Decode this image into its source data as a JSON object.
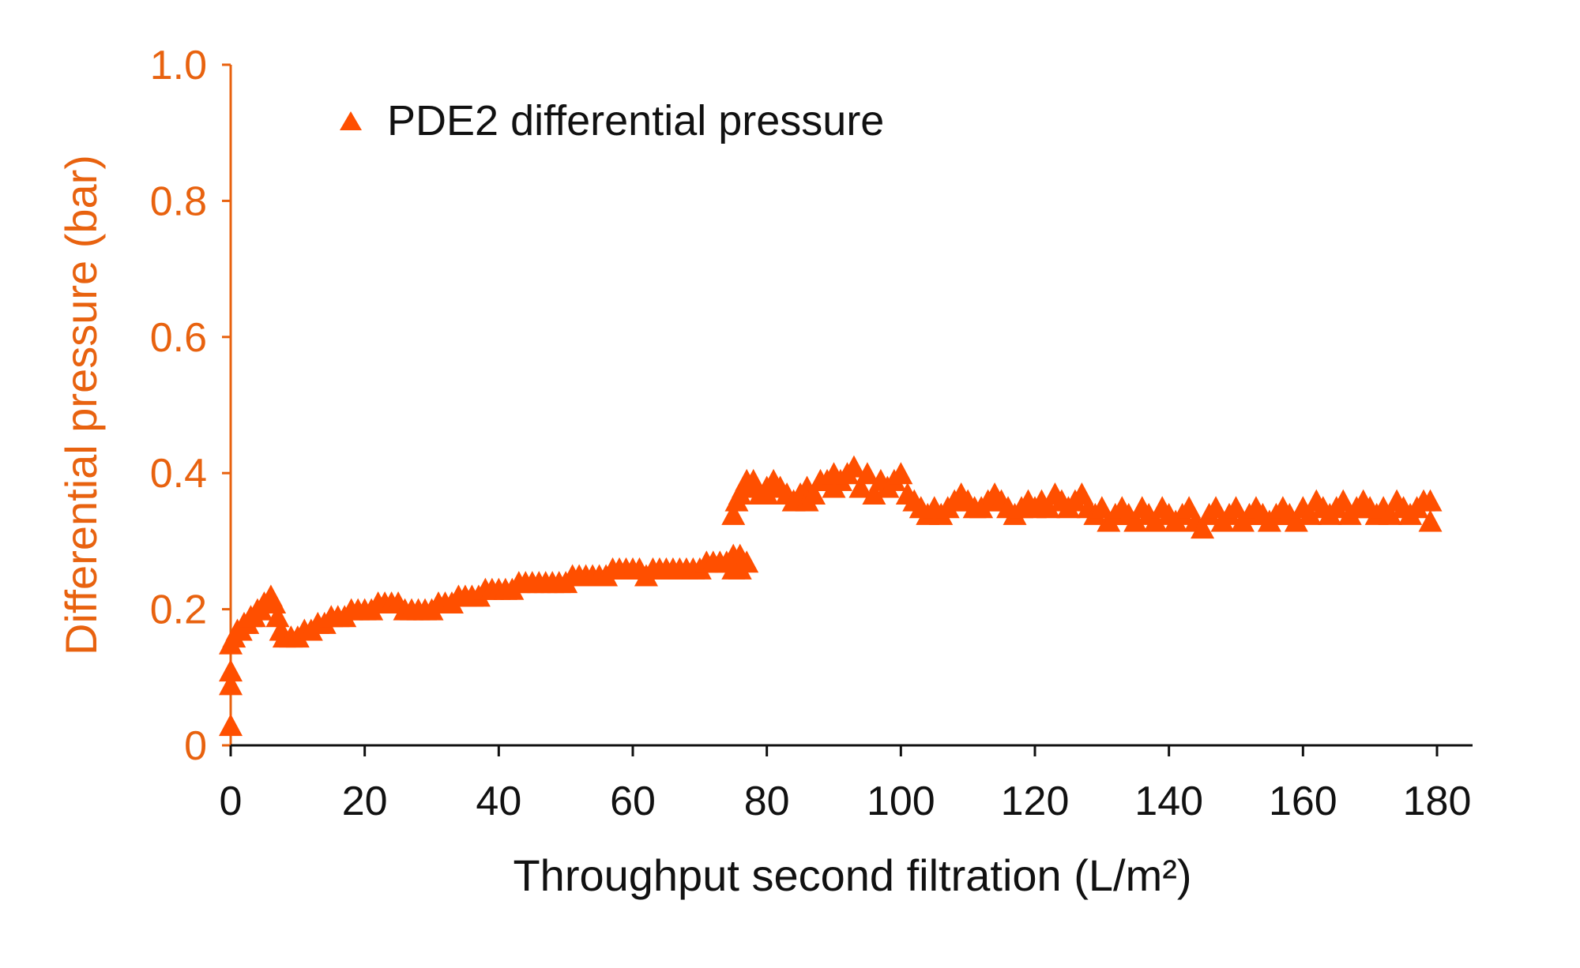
{
  "chart_data": {
    "type": "scatter",
    "title": "",
    "xlabel": "Throughput second filtration (L/m²)",
    "ylabel": "Differential pressure (bar)",
    "xlim": [
      0,
      180
    ],
    "ylim": [
      0,
      1.0
    ],
    "x_ticks": [
      "0",
      "20",
      "40",
      "60",
      "80",
      "100",
      "120",
      "140",
      "160",
      "180"
    ],
    "y_ticks": [
      "0",
      "0.2",
      "0.4",
      "0.6",
      "0.8",
      "1.0"
    ],
    "grid": false,
    "legend_position": "top-left",
    "marker": "triangle",
    "colors": {
      "series": "#FF4F00",
      "y_axis": "#E8620F",
      "x_axis": "#111111"
    },
    "series": [
      {
        "name": "PDE2 differential pressure",
        "points": [
          [
            0,
            0.03
          ],
          [
            0,
            0.09
          ],
          [
            0,
            0.11
          ],
          [
            0,
            0.15
          ],
          [
            0.5,
            0.16
          ],
          [
            1,
            0.17
          ],
          [
            1.5,
            0.17
          ],
          [
            2,
            0.18
          ],
          [
            2.5,
            0.18
          ],
          [
            3,
            0.19
          ],
          [
            3.5,
            0.19
          ],
          [
            4,
            0.2
          ],
          [
            4.5,
            0.2
          ],
          [
            5,
            0.21
          ],
          [
            5.5,
            0.21
          ],
          [
            6,
            0.22
          ],
          [
            6.5,
            0.21
          ],
          [
            7,
            0.19
          ],
          [
            7.5,
            0.17
          ],
          [
            8,
            0.16
          ],
          [
            9,
            0.16
          ],
          [
            10,
            0.16
          ],
          [
            11,
            0.17
          ],
          [
            12,
            0.17
          ],
          [
            13,
            0.18
          ],
          [
            14,
            0.18
          ],
          [
            15,
            0.19
          ],
          [
            16,
            0.19
          ],
          [
            17,
            0.19
          ],
          [
            18,
            0.2
          ],
          [
            19,
            0.2
          ],
          [
            20,
            0.2
          ],
          [
            21,
            0.2
          ],
          [
            22,
            0.21
          ],
          [
            23,
            0.21
          ],
          [
            24,
            0.21
          ],
          [
            25,
            0.21
          ],
          [
            26,
            0.2
          ],
          [
            27,
            0.2
          ],
          [
            28,
            0.2
          ],
          [
            29,
            0.2
          ],
          [
            30,
            0.2
          ],
          [
            31,
            0.21
          ],
          [
            32,
            0.21
          ],
          [
            33,
            0.21
          ],
          [
            34,
            0.22
          ],
          [
            35,
            0.22
          ],
          [
            36,
            0.22
          ],
          [
            37,
            0.22
          ],
          [
            38,
            0.23
          ],
          [
            39,
            0.23
          ],
          [
            40,
            0.23
          ],
          [
            41,
            0.23
          ],
          [
            42,
            0.23
          ],
          [
            43,
            0.24
          ],
          [
            44,
            0.24
          ],
          [
            45,
            0.24
          ],
          [
            46,
            0.24
          ],
          [
            47,
            0.24
          ],
          [
            48,
            0.24
          ],
          [
            49,
            0.24
          ],
          [
            50,
            0.24
          ],
          [
            51,
            0.25
          ],
          [
            52,
            0.25
          ],
          [
            53,
            0.25
          ],
          [
            54,
            0.25
          ],
          [
            55,
            0.25
          ],
          [
            56,
            0.25
          ],
          [
            57,
            0.26
          ],
          [
            58,
            0.26
          ],
          [
            59,
            0.26
          ],
          [
            60,
            0.26
          ],
          [
            61,
            0.26
          ],
          [
            62,
            0.25
          ],
          [
            63,
            0.26
          ],
          [
            64,
            0.26
          ],
          [
            65,
            0.26
          ],
          [
            66,
            0.26
          ],
          [
            67,
            0.26
          ],
          [
            68,
            0.26
          ],
          [
            69,
            0.26
          ],
          [
            70,
            0.26
          ],
          [
            71,
            0.27
          ],
          [
            72,
            0.27
          ],
          [
            73,
            0.27
          ],
          [
            74,
            0.27
          ],
          [
            75,
            0.28
          ],
          [
            76,
            0.28
          ],
          [
            77,
            0.27
          ],
          [
            76,
            0.26
          ],
          [
            75,
            0.26
          ],
          [
            75,
            0.34
          ],
          [
            75.5,
            0.36
          ],
          [
            76,
            0.37
          ],
          [
            76.5,
            0.38
          ],
          [
            77,
            0.39
          ],
          [
            77.5,
            0.38
          ],
          [
            78,
            0.39
          ],
          [
            79,
            0.37
          ],
          [
            80,
            0.38
          ],
          [
            80,
            0.37
          ],
          [
            81,
            0.39
          ],
          [
            82,
            0.38
          ],
          [
            83,
            0.37
          ],
          [
            84,
            0.36
          ],
          [
            85,
            0.37
          ],
          [
            86,
            0.38
          ],
          [
            86,
            0.36
          ],
          [
            87,
            0.37
          ],
          [
            88,
            0.39
          ],
          [
            89,
            0.39
          ],
          [
            90,
            0.38
          ],
          [
            90,
            0.4
          ],
          [
            91,
            0.39
          ],
          [
            92,
            0.4
          ],
          [
            93,
            0.41
          ],
          [
            94,
            0.38
          ],
          [
            95,
            0.4
          ],
          [
            96,
            0.37
          ],
          [
            97,
            0.39
          ],
          [
            98,
            0.38
          ],
          [
            99,
            0.39
          ],
          [
            100,
            0.4
          ],
          [
            101,
            0.37
          ],
          [
            102,
            0.36
          ],
          [
            103,
            0.35
          ],
          [
            104,
            0.34
          ],
          [
            105,
            0.35
          ],
          [
            106,
            0.34
          ],
          [
            107,
            0.35
          ],
          [
            108,
            0.36
          ],
          [
            109,
            0.37
          ],
          [
            110,
            0.36
          ],
          [
            111,
            0.35
          ],
          [
            112,
            0.35
          ],
          [
            113,
            0.36
          ],
          [
            114,
            0.37
          ],
          [
            115,
            0.36
          ],
          [
            116,
            0.35
          ],
          [
            117,
            0.34
          ],
          [
            118,
            0.35
          ],
          [
            119,
            0.36
          ],
          [
            120,
            0.35
          ],
          [
            121,
            0.36
          ],
          [
            122,
            0.35
          ],
          [
            123,
            0.37
          ],
          [
            124,
            0.36
          ],
          [
            125,
            0.35
          ],
          [
            126,
            0.36
          ],
          [
            127,
            0.37
          ],
          [
            128,
            0.35
          ],
          [
            129,
            0.34
          ],
          [
            130,
            0.35
          ],
          [
            131,
            0.33
          ],
          [
            132,
            0.34
          ],
          [
            133,
            0.35
          ],
          [
            134,
            0.34
          ],
          [
            135,
            0.33
          ],
          [
            136,
            0.35
          ],
          [
            137,
            0.34
          ],
          [
            138,
            0.33
          ],
          [
            139,
            0.35
          ],
          [
            140,
            0.34
          ],
          [
            141,
            0.33
          ],
          [
            142,
            0.34
          ],
          [
            143,
            0.35
          ],
          [
            144,
            0.33
          ],
          [
            145,
            0.32
          ],
          [
            146,
            0.34
          ],
          [
            147,
            0.35
          ],
          [
            148,
            0.33
          ],
          [
            149,
            0.34
          ],
          [
            150,
            0.35
          ],
          [
            151,
            0.33
          ],
          [
            152,
            0.34
          ],
          [
            153,
            0.35
          ],
          [
            154,
            0.34
          ],
          [
            155,
            0.33
          ],
          [
            156,
            0.34
          ],
          [
            157,
            0.35
          ],
          [
            158,
            0.34
          ],
          [
            159,
            0.33
          ],
          [
            160,
            0.35
          ],
          [
            161,
            0.34
          ],
          [
            162,
            0.36
          ],
          [
            163,
            0.35
          ],
          [
            164,
            0.34
          ],
          [
            165,
            0.35
          ],
          [
            166,
            0.36
          ],
          [
            167,
            0.34
          ],
          [
            168,
            0.35
          ],
          [
            169,
            0.36
          ],
          [
            170,
            0.35
          ],
          [
            171,
            0.34
          ],
          [
            172,
            0.35
          ],
          [
            173,
            0.34
          ],
          [
            174,
            0.36
          ],
          [
            175,
            0.35
          ],
          [
            176,
            0.34
          ],
          [
            177,
            0.35
          ],
          [
            178,
            0.36
          ],
          [
            179,
            0.33
          ],
          [
            179,
            0.36
          ]
        ]
      }
    ]
  }
}
